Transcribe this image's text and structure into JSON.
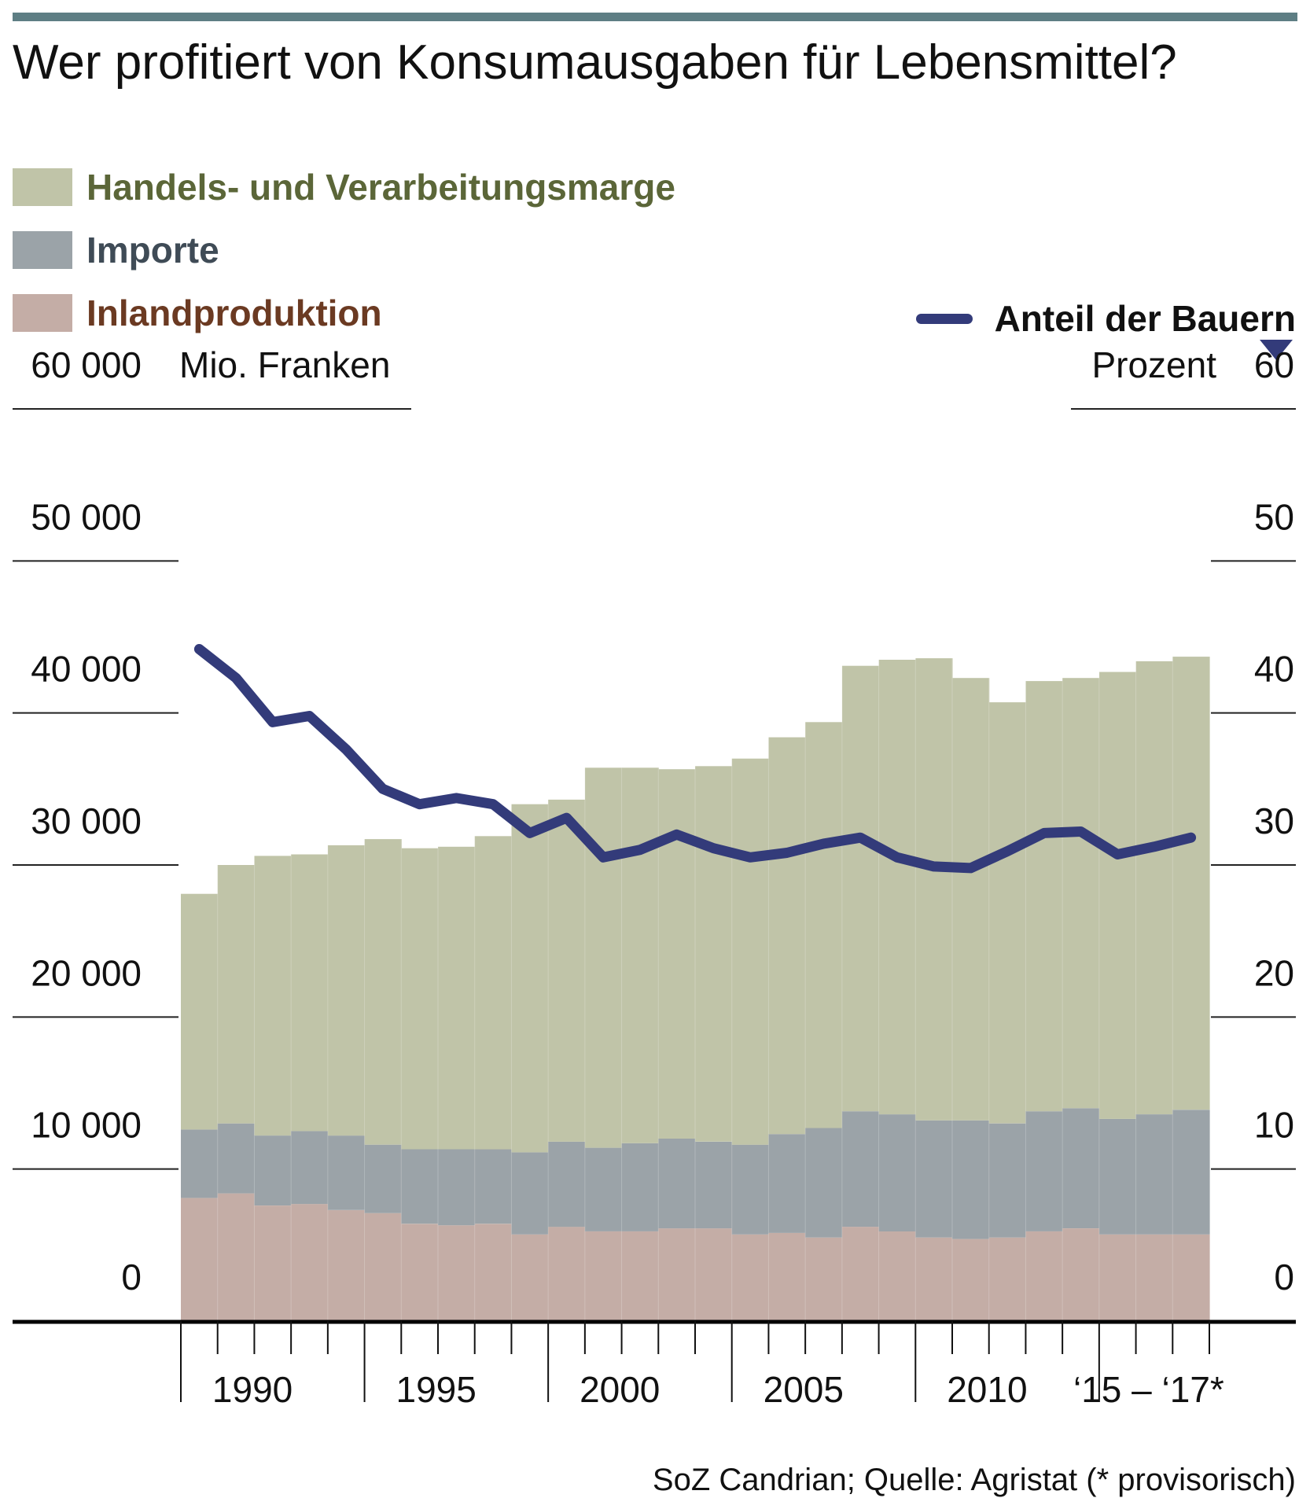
{
  "title": "Wer profitiert von Konsumausgaben für Lebensmittel?",
  "legend": {
    "marge": "Handels- und Verarbeitungsmarge",
    "importe": "Importe",
    "inland": "Inlandproduktion",
    "bauern": "Anteil der Bauern"
  },
  "colors": {
    "marge": "#c0c4a8",
    "importe": "#9ba3a8",
    "inland": "#c4ada6",
    "line": "#333b7a",
    "topbar": "#5e7e84",
    "marge_text": "#5b6638",
    "importe_text": "#3f4b56",
    "inland_text": "#6b3a22"
  },
  "axes": {
    "left_unit": "Mio. Franken",
    "right_unit": "Prozent",
    "left_ticks": [
      "0",
      "10 000",
      "20 000",
      "30 000",
      "40 000",
      "50 000",
      "60 000"
    ],
    "right_ticks": [
      "0",
      "10",
      "20",
      "30",
      "40",
      "50",
      "60"
    ],
    "x_labels": [
      "1990",
      "1995",
      "2000",
      "2005",
      "2010",
      "‘15 – ‘17*"
    ]
  },
  "source": "SoZ Candrian; Quelle: Agristat (* provisorisch)",
  "chart_data": {
    "type": "bar",
    "title": "Wer profitiert von Konsumausgaben für Lebensmittel?",
    "categories": [
      "1989",
      "1990",
      "1991",
      "1992",
      "1993",
      "1994",
      "1995",
      "1996",
      "1997",
      "1998",
      "1999",
      "2000",
      "2001",
      "2002",
      "2003",
      "2004",
      "2005",
      "2006",
      "2007",
      "2008",
      "2009",
      "2010",
      "2011",
      "2012",
      "2013",
      "2014",
      "2015",
      "2016"
    ],
    "stacked": true,
    "ylabel": "Mio. Franken",
    "ylim": [
      0,
      60000
    ],
    "y2label": "Prozent",
    "y2lim": [
      0,
      60
    ],
    "series": [
      {
        "name": "Inlandproduktion",
        "axis": "left",
        "values": [
          8100,
          8400,
          7600,
          7700,
          7300,
          7100,
          6400,
          6300,
          6400,
          5700,
          6200,
          5900,
          5900,
          6100,
          6100,
          5700,
          5800,
          5500,
          6200,
          5900,
          5500,
          5400,
          5500,
          5900,
          6100,
          5700,
          5700,
          5700
        ]
      },
      {
        "name": "Importe",
        "axis": "left",
        "values": [
          4500,
          4600,
          4600,
          4800,
          4900,
          4500,
          4900,
          5000,
          4900,
          5400,
          5600,
          5500,
          5800,
          5900,
          5700,
          5900,
          6500,
          7200,
          7600,
          7700,
          7700,
          7800,
          7500,
          7900,
          7900,
          7600,
          7900,
          8200
        ]
      },
      {
        "name": "Handels- und Verarbeitungsmarge",
        "axis": "left",
        "values": [
          15500,
          17000,
          18400,
          18200,
          19100,
          20100,
          19800,
          19900,
          20600,
          22900,
          22500,
          25000,
          24700,
          24300,
          24700,
          25400,
          26100,
          26700,
          29300,
          29900,
          30400,
          29100,
          27700,
          28300,
          28300,
          29400,
          29800,
          29800
        ]
      },
      {
        "name": "Anteil der Bauern",
        "type": "line",
        "axis": "right",
        "values": [
          44.2,
          42.3,
          39.4,
          39.8,
          37.6,
          35.0,
          34.0,
          34.4,
          34.0,
          32.1,
          33.1,
          30.5,
          31.0,
          32.0,
          31.1,
          30.5,
          30.8,
          31.4,
          31.8,
          30.5,
          29.9,
          29.8,
          30.9,
          32.1,
          32.2,
          30.7,
          31.2,
          31.8
        ]
      }
    ]
  }
}
